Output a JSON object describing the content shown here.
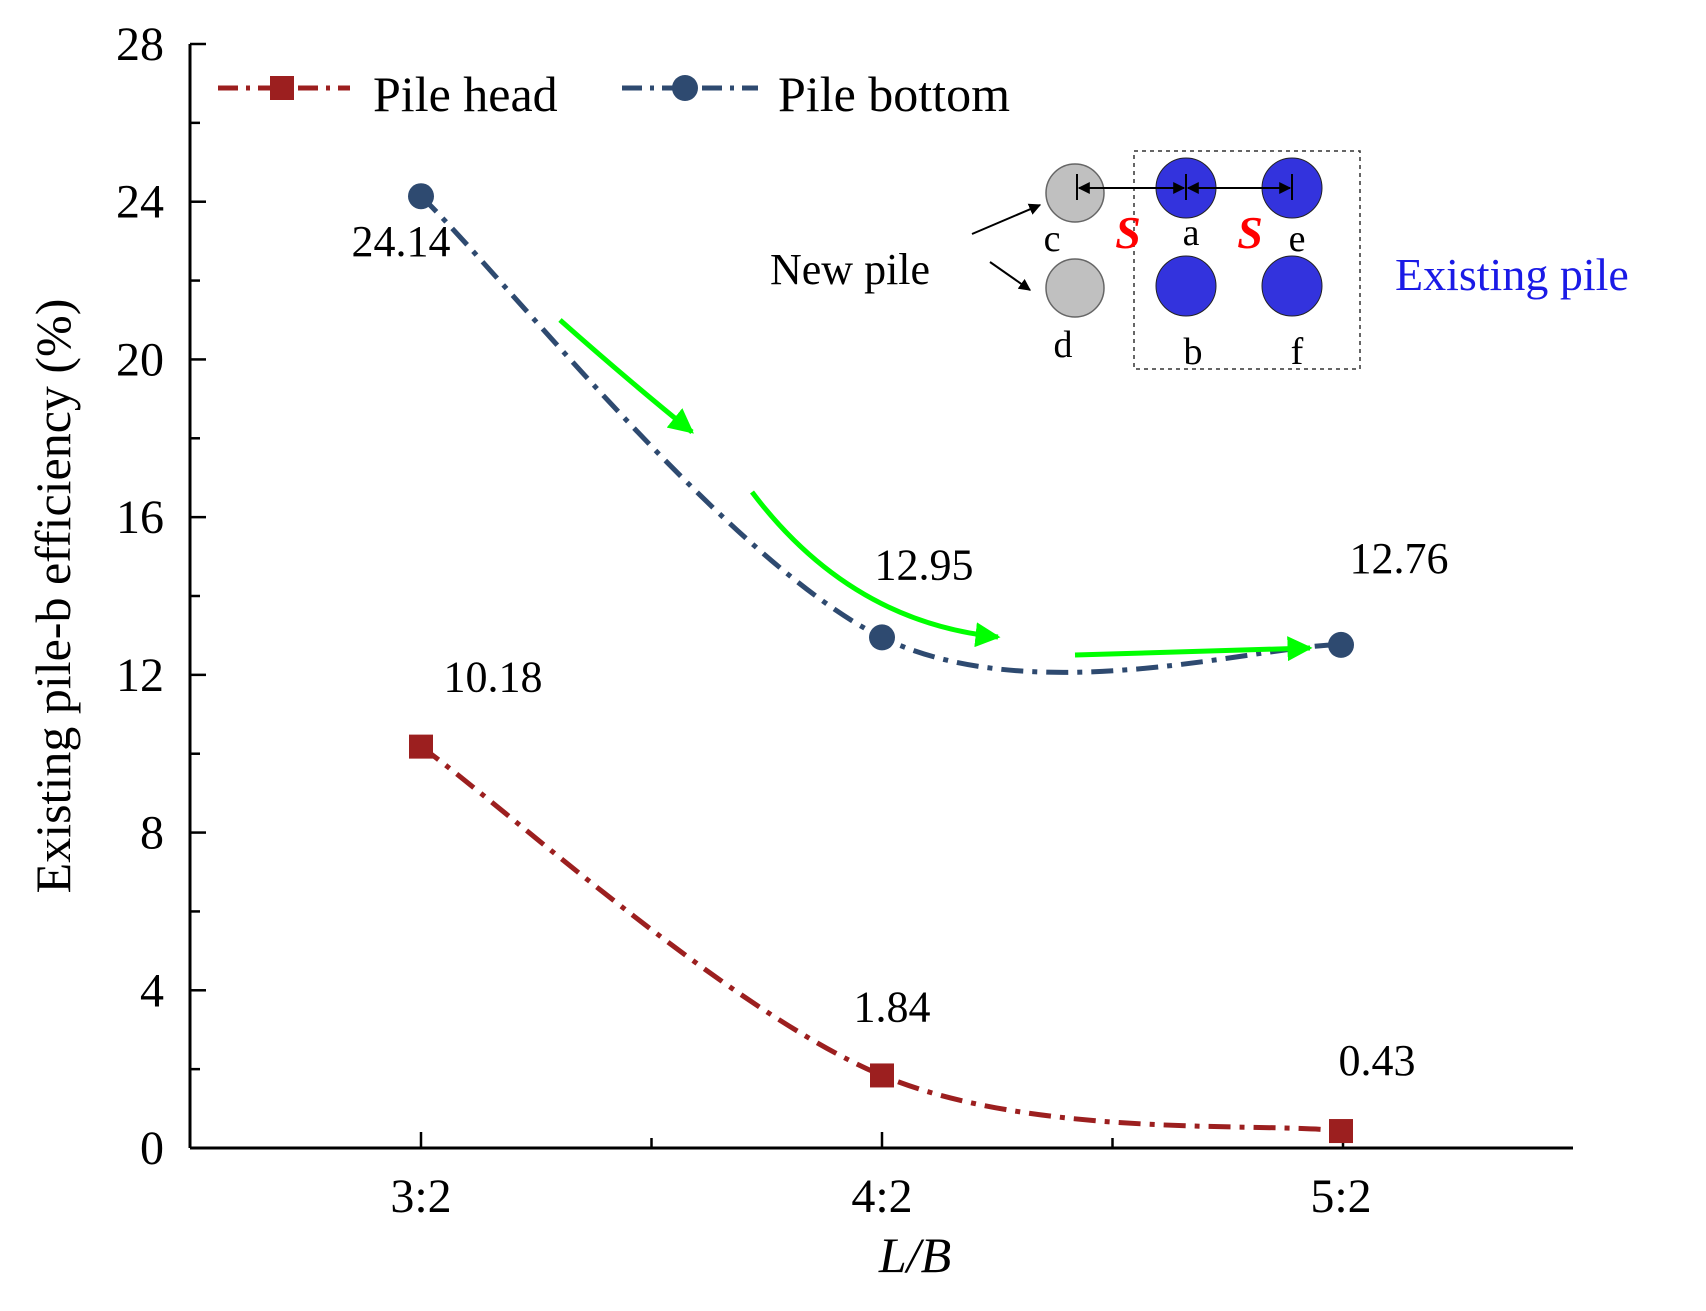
{
  "chart_data": {
    "type": "line",
    "xlabel": "L/B",
    "ylabel": "Existing pile-b efficiency (%)",
    "categories": [
      "3:2",
      "4:2",
      "5:2"
    ],
    "ylim": [
      0,
      28
    ],
    "yticks": [
      "0",
      "4",
      "8",
      "12",
      "16",
      "20",
      "24",
      "28"
    ],
    "series": [
      {
        "name": "Pile head",
        "values": [
          10.18,
          1.84,
          0.43
        ],
        "labels": [
          "10.18",
          "1.84",
          "0.43"
        ],
        "color": "#9c1f1f",
        "marker": "square"
      },
      {
        "name": "Pile bottom",
        "values": [
          24.14,
          12.95,
          12.76
        ],
        "labels": [
          "24.14",
          "12.95",
          "12.76"
        ],
        "color": "#2e4a70",
        "marker": "circle"
      }
    ],
    "annotation_arrow_color": "#00ff00"
  },
  "inset": {
    "existing_label": "Existing pile",
    "new_label": "New pile",
    "spacing_symbol": "S",
    "piles": [
      "a",
      "b",
      "c",
      "d",
      "e",
      "f"
    ],
    "existing_color": "#3333dd",
    "new_color": "#c0c0c0"
  }
}
